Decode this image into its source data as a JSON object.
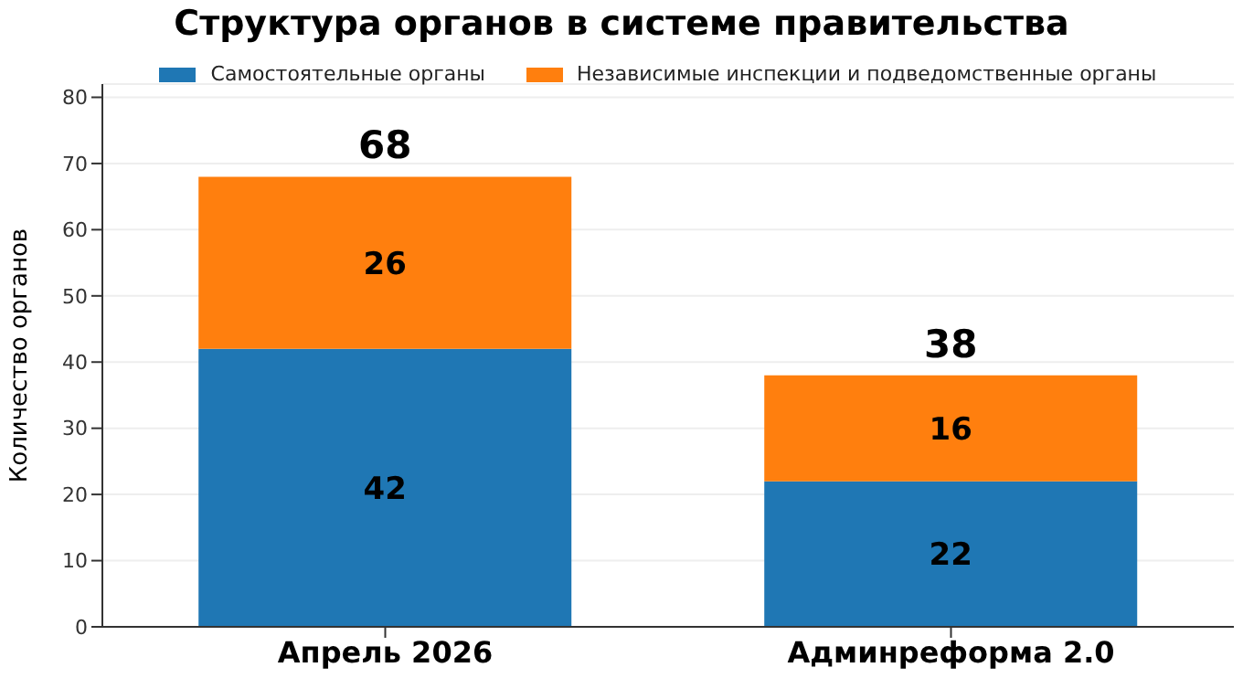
{
  "chart_data": {
    "type": "bar",
    "title": "Структура органов в системе правительства",
    "ylabel": "Количество органов",
    "categories": [
      "Апрель 2026",
      "Админреформа 2.0"
    ],
    "series": [
      {
        "name": "Самостоятельные органы",
        "color": "#1f77b4",
        "values": [
          42,
          22
        ]
      },
      {
        "name": "Независимые инспекции и подведомственные органы",
        "color": "#ff7f0e",
        "values": [
          26,
          16
        ]
      }
    ],
    "stacked": true,
    "data_labels": true,
    "totals": [
      "68",
      "38"
    ],
    "ylim": [
      0,
      82
    ],
    "yticks": [
      0,
      10,
      20,
      30,
      40,
      50,
      60,
      70,
      80
    ],
    "grid": "y",
    "legend": "top"
  }
}
